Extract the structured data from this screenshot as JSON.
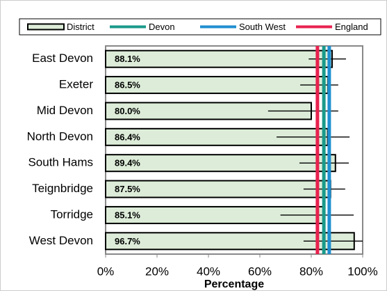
{
  "chart_data": {
    "type": "hbar",
    "categories": [
      "East Devon",
      "Exeter",
      "Mid Devon",
      "North Devon",
      "South Hams",
      "Teignbridge",
      "Torridge",
      "West Devon"
    ],
    "series": [
      {
        "name": "District",
        "color": "#dcecd8",
        "values": [
          88.1,
          86.5,
          80.0,
          86.4,
          89.4,
          87.5,
          85.1,
          96.7
        ],
        "value_labels": [
          "88.1%",
          "86.5%",
          "80.0%",
          "86.4%",
          "89.4%",
          "87.5%",
          "85.1%",
          "96.7%"
        ],
        "ci_low": [
          79,
          75.7,
          63.2,
          66.5,
          75.4,
          77,
          68,
          77
        ],
        "ci_high": [
          93.5,
          90.5,
          90.5,
          94.9,
          94.6,
          93.2,
          96.5,
          100
        ]
      }
    ],
    "reference_lines": [
      {
        "name": "Devon",
        "color": "#1a9a8a",
        "value": 84.9
      },
      {
        "name": "South West",
        "color": "#1f8fd0",
        "value": 87.0
      },
      {
        "name": "England",
        "color": "#e8224f",
        "value": 82.4
      }
    ],
    "xlim": [
      0,
      100
    ],
    "xticks": [
      {
        "value": 0,
        "label": "0%"
      },
      {
        "value": 20,
        "label": "20%"
      },
      {
        "value": 40,
        "label": "40%"
      },
      {
        "value": 60,
        "label": "60%"
      },
      {
        "value": 80,
        "label": "80%"
      },
      {
        "value": 100,
        "label": "100%"
      }
    ],
    "xlabel": "Percentage"
  }
}
